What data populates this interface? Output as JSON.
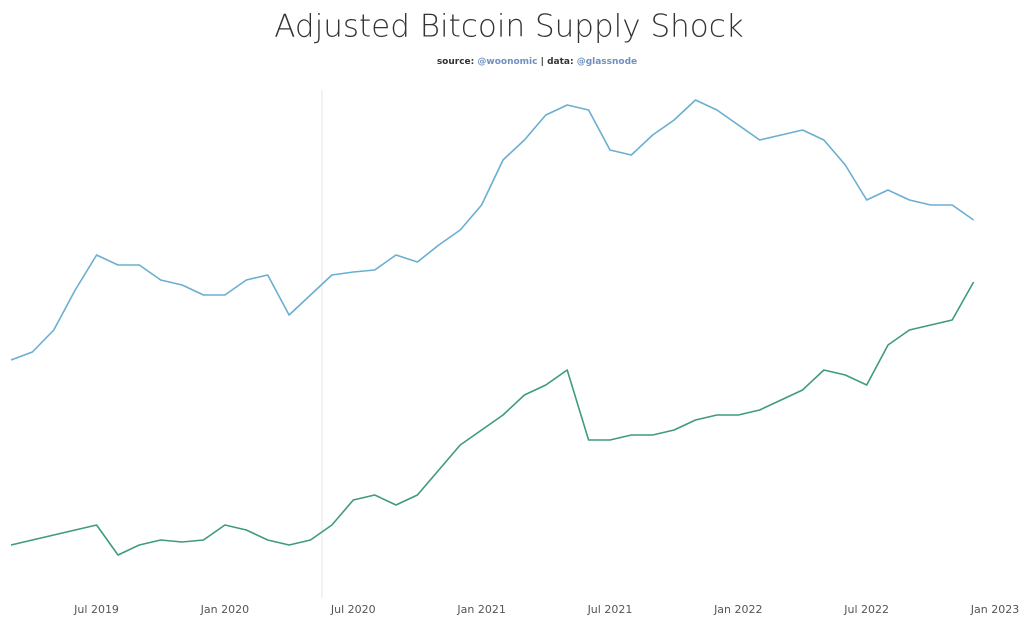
{
  "chart_data": {
    "type": "line",
    "title": "Adjusted Bitcoin Supply Shock",
    "subtitle": {
      "source_label": "source:",
      "source": "@woonomic",
      "separator": "|",
      "data_label": "data:",
      "data": "@glassnode"
    },
    "x": [
      "2019-03",
      "2019-04",
      "2019-05",
      "2019-06",
      "2019-07",
      "2019-08",
      "2019-09",
      "2019-10",
      "2019-11",
      "2019-12",
      "2020-01",
      "2020-02",
      "2020-03",
      "2020-04",
      "2020-05",
      "2020-06",
      "2020-07",
      "2020-08",
      "2020-09",
      "2020-10",
      "2020-11",
      "2020-12",
      "2021-01",
      "2021-02",
      "2021-03",
      "2021-04",
      "2021-05",
      "2021-06",
      "2021-07",
      "2021-08",
      "2021-09",
      "2021-10",
      "2021-11",
      "2021-12",
      "2022-01",
      "2022-02",
      "2022-03",
      "2022-04",
      "2022-05",
      "2022-06",
      "2022-07",
      "2022-08",
      "2022-09",
      "2022-10",
      "2022-11",
      "2022-12"
    ],
    "series": [
      {
        "color": "#6aaed0",
        "values": [
          44,
          45.6,
          50,
          58,
          65,
          63,
          63,
          60,
          59,
          57,
          57,
          60,
          61,
          53,
          57,
          61,
          61.6,
          62,
          65,
          63.6,
          67,
          70,
          75,
          84,
          88,
          93,
          95,
          94,
          86,
          85,
          89,
          92,
          96,
          94,
          91,
          88,
          89,
          90,
          88,
          83,
          76,
          78,
          76,
          75,
          75,
          72
        ]
      },
      {
        "color": "#3f9a80",
        "values": [
          7,
          8,
          9,
          10,
          11,
          5,
          7,
          8,
          7.6,
          8,
          11,
          10,
          8,
          7,
          8,
          11,
          16,
          17,
          15,
          17,
          22,
          27,
          30,
          33,
          37,
          39,
          42,
          28,
          28,
          29,
          29,
          30,
          32,
          33,
          33,
          34,
          36,
          38,
          42,
          41,
          39,
          47,
          50,
          51,
          52,
          59.6
        ]
      }
    ],
    "xlim": [
      "2019-03",
      "2023-01"
    ],
    "xticks": [
      {
        "value": "2019-07",
        "label": "Jul 2019"
      },
      {
        "value": "2020-01",
        "label": "Jan 2020"
      },
      {
        "value": "2020-07",
        "label": "Jul 2020"
      },
      {
        "value": "2021-01",
        "label": "Jan 2021"
      },
      {
        "value": "2021-07",
        "label": "Jul 2021"
      },
      {
        "value": "2022-01",
        "label": "Jan 2022"
      },
      {
        "value": "2022-07",
        "label": "Jul 2022"
      },
      {
        "value": "2023-01",
        "label": "Jan 2023"
      }
    ],
    "ylim": [
      0,
      100
    ]
  }
}
